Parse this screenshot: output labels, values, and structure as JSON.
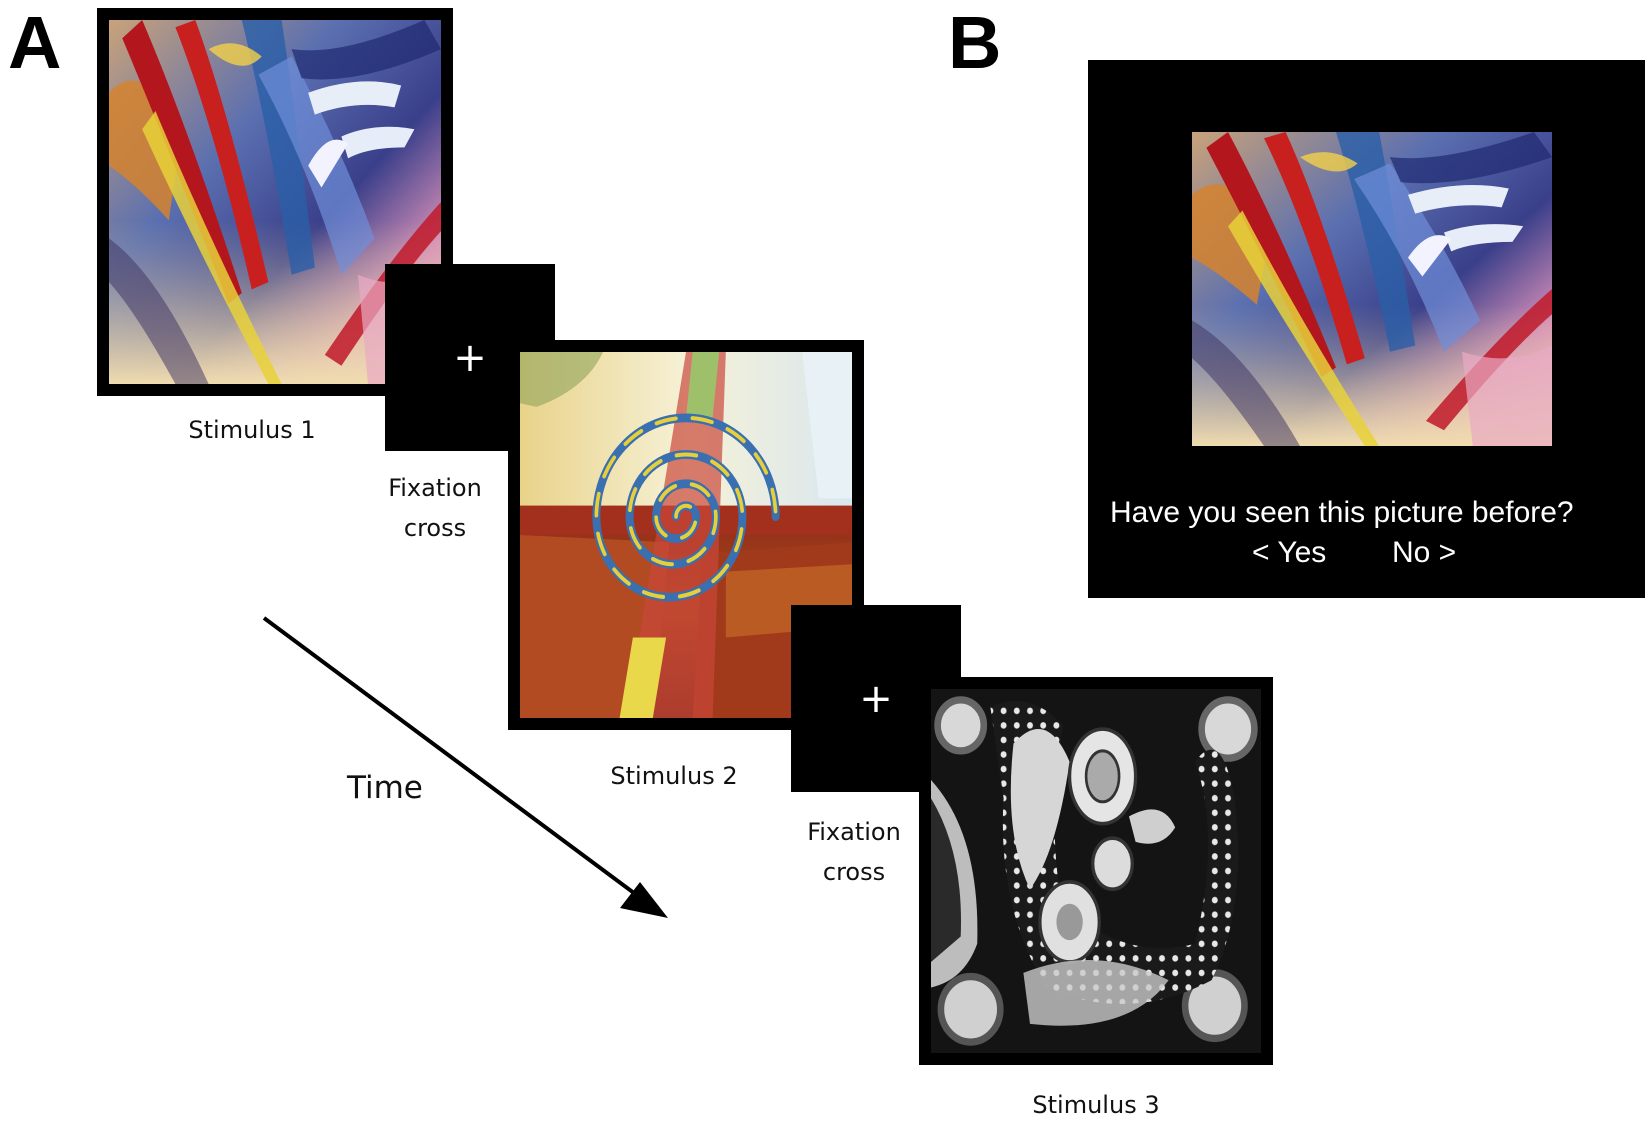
{
  "panels": {
    "a": {
      "letter": "A"
    },
    "b": {
      "letter": "B"
    }
  },
  "sequence": {
    "stimulus_1": {
      "caption": "Stimulus 1",
      "image": "abstract-painting-red-blue-strokes"
    },
    "fixation_1": {
      "symbol": "+",
      "caption_line1": "Fixation",
      "caption_line2": "cross"
    },
    "stimulus_2": {
      "caption": "Stimulus 2",
      "image": "spiral-painting-red-yellow"
    },
    "fixation_2": {
      "symbol": "+",
      "caption_line1": "Fixation",
      "caption_line2": "cross"
    },
    "stimulus_3": {
      "caption": "Stimulus 3",
      "image": "black-white-pattern-painting"
    },
    "time": {
      "label": "Time"
    }
  },
  "recognition_screen": {
    "image": "abstract-painting-red-blue-strokes",
    "question": "Have you seen this picture before?",
    "option_yes": "< Yes",
    "option_no": "No >"
  },
  "colors": {
    "frame": "#000000",
    "screen_background": "#000000",
    "screen_text": "#ffffff",
    "caption_text": "#111111"
  }
}
